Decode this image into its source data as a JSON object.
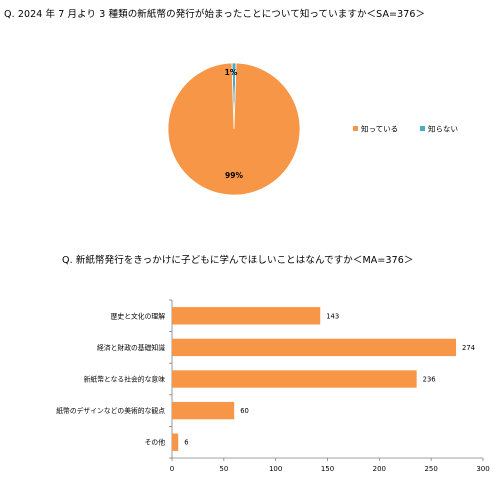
{
  "chart_data": [
    {
      "type": "pie",
      "title": "Q. 2024 年 7 月より 3 種類の新紙幣の発行が始まったことについて知っていますか＜SA=376＞",
      "slices": [
        {
          "label": "知っている",
          "value": 99,
          "display": "99%",
          "color": "#F79646"
        },
        {
          "label": "知らない",
          "value": 1,
          "display": "1%",
          "color": "#4BACC6"
        }
      ],
      "legend_position": "right"
    },
    {
      "type": "bar",
      "orientation": "horizontal",
      "title": "Q. 新紙幣発行をきっかけに子どもに学んでほしいことはなんですか＜MA=376＞",
      "categories": [
        "歴史と文化の理解",
        "経済と財政の基礎知識",
        "新紙幣となる社会的な意味",
        "紙幣のデザインなどの美術的な観点",
        "その他"
      ],
      "values": [
        143,
        274,
        236,
        60,
        6
      ],
      "xlim": [
        0,
        300
      ],
      "xticks": [
        "0",
        "50",
        "100",
        "150",
        "200",
        "250",
        "300"
      ],
      "color": "#F79646",
      "grid": false,
      "xlabel": "",
      "ylabel": ""
    }
  ]
}
